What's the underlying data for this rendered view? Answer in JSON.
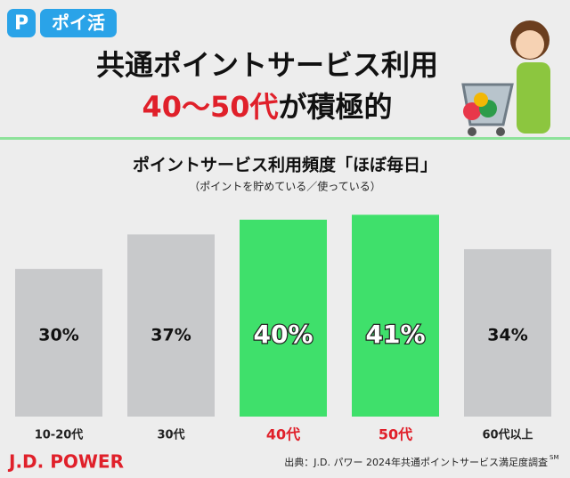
{
  "header": {
    "logo_text": "ポイ活",
    "title_line1": "共通ポイントサービス利用",
    "title_highlight": "40〜50代",
    "title_rest": "が積極的"
  },
  "chart_data": {
    "type": "bar",
    "title": "ポイントサービス利用頻度「ほぼ毎日」",
    "subtitle": "（ポイントを貯めている／使っている）",
    "categories": [
      "10-20代",
      "30代",
      "40代",
      "50代",
      "60代以上"
    ],
    "values": [
      30,
      37,
      40,
      41,
      34
    ],
    "value_labels": [
      "30%",
      "37%",
      "40%",
      "41%",
      "34%"
    ],
    "colors": [
      "#c8c9cb",
      "#c8c9cb",
      "#3fe06b",
      "#3fe06b",
      "#c8c9cb"
    ],
    "label_colors": [
      "#222222",
      "#222222",
      "#e0202a",
      "#e0202a",
      "#222222"
    ]
  },
  "footer": {
    "brand": "J.D. POWER",
    "source": "出典：J.D. パワー 2024年共通ポイントサービス満足度調査",
    "source_mark": "SM"
  }
}
